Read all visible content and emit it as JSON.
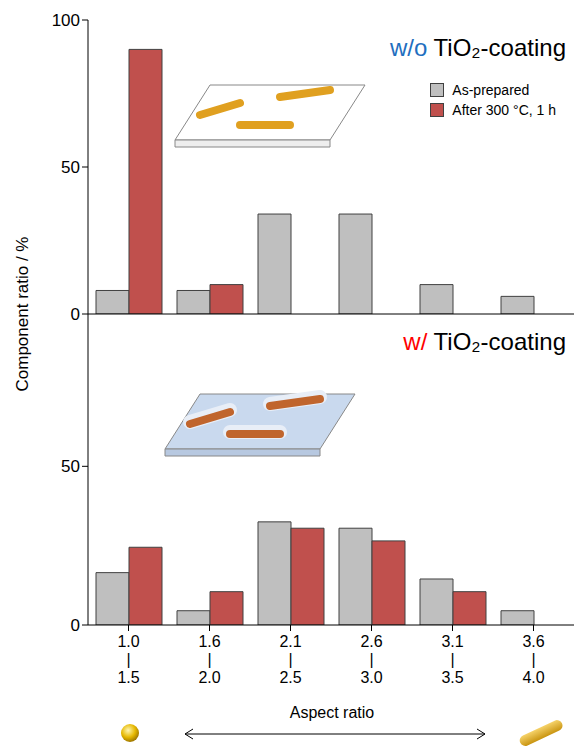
{
  "chart_data": [
    {
      "type": "bar",
      "title": "w/o TiO₂-coating",
      "y_label": "Component ratio / %",
      "categories": [
        "1.0\n|\n1.5",
        "1.6\n|\n2.0",
        "2.1\n|\n2.5",
        "2.6\n|\n3.0",
        "3.1\n|\n3.5",
        "3.6\n|\n4.0"
      ],
      "series": [
        {
          "name": "As-prepared",
          "color": "#bfbfbf",
          "values": [
            8,
            8,
            34,
            34,
            10,
            6
          ]
        },
        {
          "name": "After 300 °C, 1 h",
          "color": "#c0504d",
          "values": [
            90,
            10,
            0,
            0,
            0,
            0
          ]
        }
      ],
      "ylim": [
        0,
        100
      ],
      "yticks": [
        0,
        50,
        100
      ],
      "legend": "upper right",
      "tick_labels": "y"
    },
    {
      "type": "bar",
      "title": "w/ TiO₂-coating",
      "x_label": "Aspect ratio",
      "categories": [
        "1.0\n|\n1.5",
        "1.6\n|\n2.0",
        "2.1\n|\n2.5",
        "2.6\n|\n3.0",
        "3.1\n|\n3.5",
        "3.6\n|\n4.0"
      ],
      "series": [
        {
          "name": "As-prepared",
          "color": "#bfbfbf",
          "values": [
            16.5,
            4.5,
            32.5,
            30.5,
            14.5,
            4.5
          ]
        },
        {
          "name": "After 300 °C, 1 h",
          "color": "#c0504d",
          "values": [
            24.5,
            10.5,
            30.5,
            26.5,
            10.5,
            0
          ]
        }
      ],
      "ylim": [
        0,
        98
      ],
      "yticks": [
        0,
        50
      ]
    }
  ]
}
